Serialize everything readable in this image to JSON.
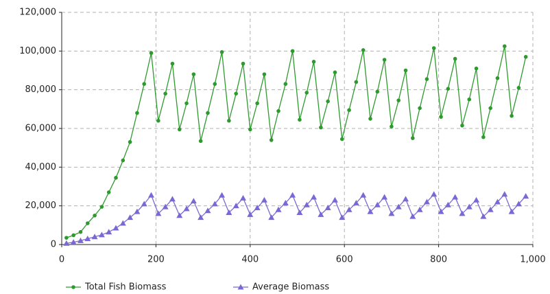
{
  "chart_data": {
    "type": "line",
    "x": [
      10,
      25,
      40,
      55,
      70,
      85,
      100,
      115,
      130,
      145,
      160,
      175,
      190,
      205,
      220,
      235,
      250,
      265,
      280,
      295,
      310,
      325,
      340,
      355,
      370,
      385,
      400,
      415,
      430,
      445,
      460,
      475,
      490,
      505,
      520,
      535,
      550,
      565,
      580,
      595,
      610,
      625,
      640,
      655,
      670,
      685,
      700,
      715,
      730,
      745,
      760,
      775,
      790,
      805,
      820,
      835,
      850,
      865,
      880,
      895,
      910,
      925,
      940,
      955,
      970,
      985
    ],
    "series": [
      {
        "name": "Total Fish Biomass",
        "color": "#2e9a2e",
        "marker": "circle",
        "values": [
          3500,
          4800,
          6500,
          11000,
          15000,
          19500,
          27000,
          34500,
          43500,
          53000,
          68000,
          83000,
          99000,
          64000,
          78000,
          93500,
          59500,
          73000,
          88000,
          53500,
          68000,
          83000,
          99500,
          64000,
          78000,
          93500,
          59500,
          73000,
          88000,
          54000,
          69000,
          83000,
          100000,
          64500,
          78500,
          94500,
          60500,
          74000,
          89000,
          54500,
          69500,
          84000,
          100500,
          65000,
          79000,
          95500,
          61000,
          74500,
          90000,
          55000,
          70500,
          85500,
          101500,
          66000,
          80500,
          96000,
          61500,
          75000,
          91000,
          55500,
          70500,
          86000,
          102500,
          66500,
          81000,
          97000
        ]
      },
      {
        "name": "Average Biomass",
        "color": "#7b68d4",
        "marker": "triangle",
        "values": [
          600,
          1200,
          2000,
          3000,
          4000,
          5000,
          6500,
          8500,
          11000,
          14000,
          17000,
          21000,
          25500,
          16000,
          19500,
          23500,
          15000,
          18500,
          22500,
          14000,
          17500,
          21000,
          25500,
          16500,
          20000,
          24000,
          15500,
          19000,
          23000,
          14000,
          18000,
          21500,
          25500,
          16500,
          20500,
          24500,
          15500,
          19000,
          23000,
          14000,
          18000,
          21500,
          25500,
          17000,
          20500,
          24500,
          16000,
          19500,
          23500,
          14500,
          18000,
          22000,
          26000,
          17000,
          20500,
          24500,
          16000,
          19500,
          23000,
          14500,
          18000,
          22000,
          26000,
          17000,
          21000,
          25000
        ]
      }
    ],
    "xlim": [
      0,
      1000
    ],
    "xticks": [
      0,
      200,
      400,
      600,
      800,
      {
        "value": 1000,
        "label": "1,000"
      }
    ],
    "ylim": [
      0,
      120000
    ],
    "yticks": [
      0,
      {
        "value": 20000,
        "label": "20,000"
      },
      {
        "value": 40000,
        "label": "40,000"
      },
      {
        "value": 60000,
        "label": "60,000"
      },
      {
        "value": 80000,
        "label": "80,000"
      },
      {
        "value": 100000,
        "label": "100,000"
      },
      {
        "value": 120000,
        "label": "120,000"
      }
    ],
    "grid": true,
    "legend": "bottom"
  }
}
